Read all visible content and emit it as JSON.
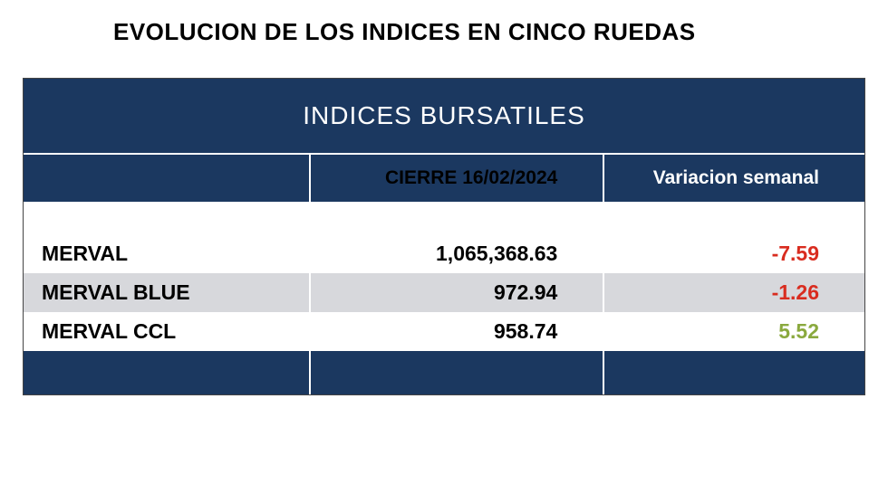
{
  "page_title": "EVOLUCION DE LOS INDICES EN CINCO RUEDAS",
  "table": {
    "banner": "INDICES BURSATILES",
    "columns": [
      "",
      "CIERRE 16/02/2024",
      "Variacion semanal"
    ],
    "rows": [
      {
        "index": "MERVAL",
        "close": "1,065,368.63",
        "variation": "-7.59",
        "variation_sign": "neg"
      },
      {
        "index": "MERVAL BLUE",
        "close": "972.94",
        "variation": "-1.26",
        "variation_sign": "neg"
      },
      {
        "index": "MERVAL CCL",
        "close": "958.74",
        "variation": "5.52",
        "variation_sign": "pos"
      }
    ],
    "colors": {
      "header_bg": "#1b3860",
      "header_text": "#ffffff",
      "row_odd_bg": "#ffffff",
      "row_even_bg": "#d7d8dc",
      "text": "#000000",
      "negative": "#d92c1f",
      "positive": "#8aa93e",
      "border": "#ffffff"
    },
    "font_sizes": {
      "page_title": 26,
      "banner": 28,
      "header": 21,
      "cell": 23
    }
  }
}
